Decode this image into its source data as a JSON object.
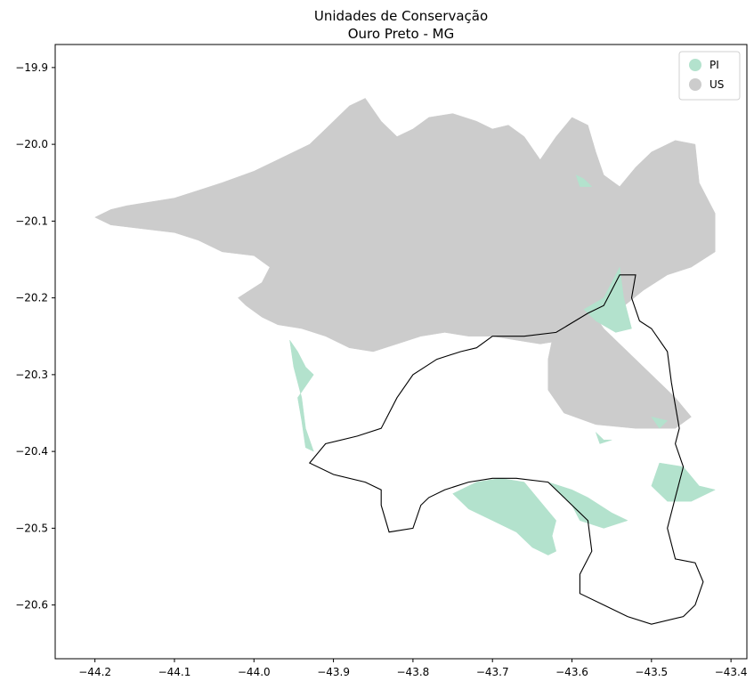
{
  "title_line1": "Unidades de Conservação",
  "title_line2": "Ouro Preto - MG",
  "chart_data": {
    "type": "map",
    "title": "Unidades de Conservação\nOuro Preto - MG",
    "xlim": [
      -44.25,
      -43.38
    ],
    "ylim": [
      -20.67,
      -19.87
    ],
    "x_ticks": [
      -44.2,
      -44.1,
      -44.0,
      -43.9,
      -43.8,
      -43.7,
      -43.6,
      -43.5,
      -43.4
    ],
    "y_ticks": [
      -19.9,
      -20.0,
      -20.1,
      -20.2,
      -20.3,
      -20.4,
      -20.5,
      -20.6
    ],
    "x_tick_labels": [
      "−44.2",
      "−44.1",
      "−44.0",
      "−43.9",
      "−43.8",
      "−43.7",
      "−43.6",
      "−43.5",
      "−43.4"
    ],
    "y_tick_labels": [
      "−19.9",
      "−20.0",
      "−20.1",
      "−20.2",
      "−20.3",
      "−20.4",
      "−20.5",
      "−20.6"
    ],
    "grid": false,
    "legend": {
      "placement": "top-right",
      "entries": [
        {
          "label": "PI",
          "color": "#b3e2cd"
        },
        {
          "label": "US",
          "color": "#cccccc"
        }
      ]
    },
    "layers": [
      {
        "category": "US",
        "color": "#cccccc",
        "polygons": [
          [
            [
              -44.2,
              -20.095
            ],
            [
              -44.18,
              -20.085
            ],
            [
              -44.16,
              -20.08
            ],
            [
              -44.13,
              -20.075
            ],
            [
              -44.1,
              -20.07
            ],
            [
              -44.07,
              -20.06
            ],
            [
              -44.04,
              -20.05
            ],
            [
              -44.0,
              -20.035
            ],
            [
              -43.97,
              -20.02
            ],
            [
              -43.93,
              -20.0
            ],
            [
              -43.91,
              -19.98
            ],
            [
              -43.89,
              -19.96
            ],
            [
              -43.88,
              -19.95
            ],
            [
              -43.86,
              -19.94
            ],
            [
              -43.84,
              -19.97
            ],
            [
              -43.82,
              -19.99
            ],
            [
              -43.8,
              -19.98
            ],
            [
              -43.78,
              -19.965
            ],
            [
              -43.75,
              -19.96
            ],
            [
              -43.72,
              -19.97
            ],
            [
              -43.7,
              -19.98
            ],
            [
              -43.68,
              -19.975
            ],
            [
              -43.66,
              -19.99
            ],
            [
              -43.64,
              -20.02
            ],
            [
              -43.62,
              -19.99
            ],
            [
              -43.6,
              -19.965
            ],
            [
              -43.58,
              -19.975
            ],
            [
              -43.57,
              -20.01
            ],
            [
              -43.56,
              -20.04
            ],
            [
              -43.54,
              -20.055
            ],
            [
              -43.52,
              -20.03
            ],
            [
              -43.5,
              -20.01
            ],
            [
              -43.47,
              -19.995
            ],
            [
              -43.445,
              -20.0
            ],
            [
              -43.44,
              -20.05
            ],
            [
              -43.42,
              -20.09
            ],
            [
              -43.42,
              -20.14
            ],
            [
              -43.45,
              -20.16
            ],
            [
              -43.48,
              -20.17
            ],
            [
              -43.51,
              -20.19
            ],
            [
              -43.54,
              -20.215
            ],
            [
              -43.57,
              -20.235
            ],
            [
              -43.61,
              -20.255
            ],
            [
              -43.64,
              -20.26
            ],
            [
              -43.67,
              -20.255
            ],
            [
              -43.7,
              -20.25
            ],
            [
              -43.73,
              -20.25
            ],
            [
              -43.76,
              -20.245
            ],
            [
              -43.79,
              -20.25
            ],
            [
              -43.82,
              -20.26
            ],
            [
              -43.85,
              -20.27
            ],
            [
              -43.88,
              -20.265
            ],
            [
              -43.91,
              -20.25
            ],
            [
              -43.94,
              -20.24
            ],
            [
              -43.97,
              -20.235
            ],
            [
              -43.99,
              -20.225
            ],
            [
              -44.01,
              -20.21
            ],
            [
              -44.02,
              -20.2
            ],
            [
              -43.99,
              -20.18
            ],
            [
              -43.98,
              -20.16
            ],
            [
              -44.0,
              -20.145
            ],
            [
              -44.04,
              -20.14
            ],
            [
              -44.07,
              -20.125
            ],
            [
              -44.1,
              -20.115
            ],
            [
              -44.14,
              -20.11
            ],
            [
              -44.18,
              -20.105
            ]
          ],
          [
            [
              -43.6,
              -20.17
            ],
            [
              -43.58,
              -20.21
            ],
            [
              -43.56,
              -20.24
            ],
            [
              -43.53,
              -20.27
            ],
            [
              -43.5,
              -20.3
            ],
            [
              -43.47,
              -20.33
            ],
            [
              -43.45,
              -20.355
            ],
            [
              -43.47,
              -20.37
            ],
            [
              -43.52,
              -20.37
            ],
            [
              -43.57,
              -20.365
            ],
            [
              -43.61,
              -20.35
            ],
            [
              -43.63,
              -20.32
            ],
            [
              -43.63,
              -20.28
            ],
            [
              -43.62,
              -20.23
            ]
          ]
        ]
      },
      {
        "category": "PI",
        "color": "#b3e2cd",
        "polygons": [
          [
            [
              -43.955,
              -20.255
            ],
            [
              -43.95,
              -20.29
            ],
            [
              -43.94,
              -20.33
            ],
            [
              -43.935,
              -20.37
            ],
            [
              -43.925,
              -20.4
            ],
            [
              -43.935,
              -20.395
            ],
            [
              -43.94,
              -20.36
            ],
            [
              -43.945,
              -20.33
            ],
            [
              -43.925,
              -20.3
            ],
            [
              -43.935,
              -20.29
            ],
            [
              -43.945,
              -20.27
            ]
          ],
          [
            [
              -43.54,
              -20.16
            ],
            [
              -43.535,
              -20.2
            ],
            [
              -43.525,
              -20.24
            ],
            [
              -43.545,
              -20.245
            ],
            [
              -43.57,
              -20.23
            ],
            [
              -43.585,
              -20.215
            ],
            [
              -43.56,
              -20.2
            ],
            [
              -43.55,
              -20.18
            ]
          ],
          [
            [
              -43.595,
              -20.04
            ],
            [
              -43.585,
              -20.045
            ],
            [
              -43.575,
              -20.055
            ],
            [
              -43.59,
              -20.055
            ]
          ],
          [
            [
              -43.72,
              -20.44
            ],
            [
              -43.69,
              -20.435
            ],
            [
              -43.66,
              -20.44
            ],
            [
              -43.64,
              -20.465
            ],
            [
              -43.62,
              -20.49
            ],
            [
              -43.625,
              -20.51
            ],
            [
              -43.62,
              -20.53
            ],
            [
              -43.63,
              -20.535
            ],
            [
              -43.65,
              -20.525
            ],
            [
              -43.67,
              -20.505
            ],
            [
              -43.7,
              -20.49
            ],
            [
              -43.73,
              -20.475
            ],
            [
              -43.75,
              -20.455
            ]
          ],
          [
            [
              -43.63,
              -20.44
            ],
            [
              -43.6,
              -20.45
            ],
            [
              -43.58,
              -20.46
            ],
            [
              -43.55,
              -20.48
            ],
            [
              -43.53,
              -20.49
            ],
            [
              -43.56,
              -20.5
            ],
            [
              -43.59,
              -20.49
            ],
            [
              -43.6,
              -20.47
            ]
          ],
          [
            [
              -43.49,
              -20.415
            ],
            [
              -43.46,
              -20.42
            ],
            [
              -43.44,
              -20.445
            ],
            [
              -43.42,
              -20.45
            ],
            [
              -43.45,
              -20.465
            ],
            [
              -43.48,
              -20.465
            ],
            [
              -43.5,
              -20.445
            ]
          ],
          [
            [
              -43.57,
              -20.375
            ],
            [
              -43.56,
              -20.385
            ],
            [
              -43.55,
              -20.385
            ],
            [
              -43.565,
              -20.39
            ]
          ],
          [
            [
              -43.5,
              -20.355
            ],
            [
              -43.48,
              -20.36
            ],
            [
              -43.49,
              -20.37
            ]
          ]
        ]
      }
    ],
    "boundary": {
      "name": "Ouro Preto",
      "color": "#000000",
      "points": [
        [
          -43.52,
          -20.17
        ],
        [
          -43.525,
          -20.2
        ],
        [
          -43.515,
          -20.23
        ],
        [
          -43.5,
          -20.24
        ],
        [
          -43.48,
          -20.27
        ],
        [
          -43.475,
          -20.31
        ],
        [
          -43.47,
          -20.34
        ],
        [
          -43.465,
          -20.37
        ],
        [
          -43.47,
          -20.39
        ],
        [
          -43.46,
          -20.42
        ],
        [
          -43.47,
          -20.46
        ],
        [
          -43.48,
          -20.5
        ],
        [
          -43.47,
          -20.54
        ],
        [
          -43.445,
          -20.545
        ],
        [
          -43.435,
          -20.57
        ],
        [
          -43.445,
          -20.6
        ],
        [
          -43.46,
          -20.615
        ],
        [
          -43.5,
          -20.625
        ],
        [
          -43.53,
          -20.615
        ],
        [
          -43.56,
          -20.6
        ],
        [
          -43.59,
          -20.585
        ],
        [
          -43.59,
          -20.56
        ],
        [
          -43.575,
          -20.53
        ],
        [
          -43.58,
          -20.49
        ],
        [
          -43.63,
          -20.44
        ],
        [
          -43.67,
          -20.435
        ],
        [
          -43.7,
          -20.435
        ],
        [
          -43.73,
          -20.44
        ],
        [
          -43.76,
          -20.45
        ],
        [
          -43.78,
          -20.46
        ],
        [
          -43.79,
          -20.47
        ],
        [
          -43.8,
          -20.5
        ],
        [
          -43.83,
          -20.505
        ],
        [
          -43.84,
          -20.47
        ],
        [
          -43.84,
          -20.45
        ],
        [
          -43.86,
          -20.44
        ],
        [
          -43.9,
          -20.43
        ],
        [
          -43.93,
          -20.415
        ],
        [
          -43.91,
          -20.39
        ],
        [
          -43.87,
          -20.38
        ],
        [
          -43.84,
          -20.37
        ],
        [
          -43.82,
          -20.33
        ],
        [
          -43.8,
          -20.3
        ],
        [
          -43.77,
          -20.28
        ],
        [
          -43.74,
          -20.27
        ],
        [
          -43.72,
          -20.265
        ],
        [
          -43.7,
          -20.25
        ],
        [
          -43.66,
          -20.25
        ],
        [
          -43.62,
          -20.245
        ],
        [
          -43.58,
          -20.22
        ],
        [
          -43.56,
          -20.21
        ],
        [
          -43.55,
          -20.19
        ],
        [
          -43.54,
          -20.17
        ]
      ]
    }
  }
}
